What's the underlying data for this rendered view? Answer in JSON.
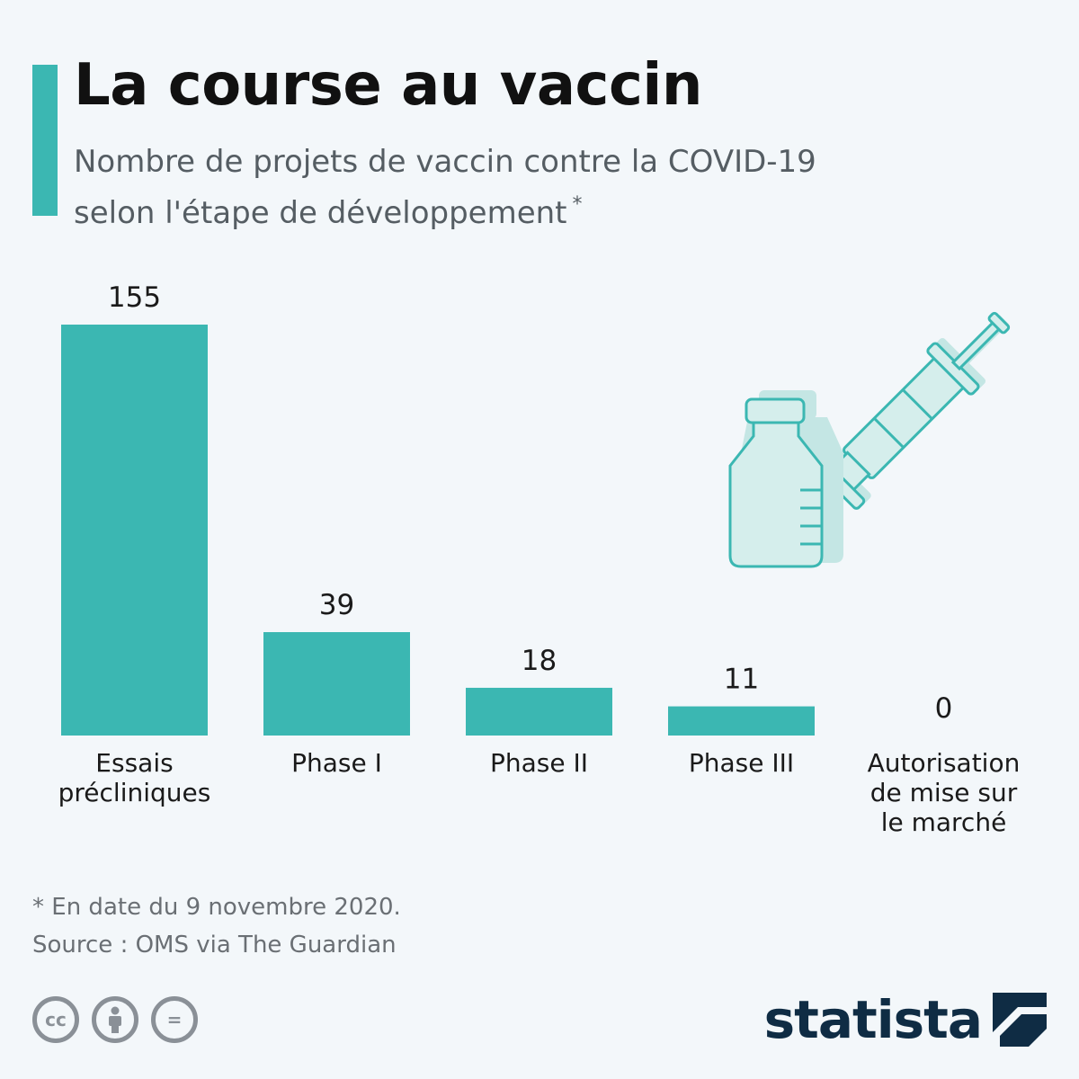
{
  "header": {
    "title": "La course au vaccin",
    "subtitle_line1": "Nombre de projets de vaccin contre la COVID-19",
    "subtitle_line2": "selon l'étape de développement",
    "subtitle_marker": "*"
  },
  "chart_data": {
    "type": "bar",
    "categories": [
      [
        "Essais",
        "précliniques"
      ],
      [
        "Phase I"
      ],
      [
        "Phase II"
      ],
      [
        "Phase III"
      ],
      [
        "Autorisation",
        "de mise sur",
        "le marché"
      ]
    ],
    "values": [
      155,
      39,
      18,
      11,
      0
    ],
    "ylim": [
      0,
      155
    ],
    "grid": false,
    "legend": "none",
    "bar_color": "#3bb7b2"
  },
  "footer": {
    "note": "* En date du 9 novembre 2020.",
    "source": "Source : OMS via The Guardian"
  },
  "license_icons": [
    "cc-icon",
    "attribution-icon",
    "no-derivatives-icon"
  ],
  "license_glyphs": {
    "cc": "cc",
    "by": "",
    "nd": "="
  },
  "brand": {
    "name": "statista",
    "primary_color": "#0f2c44",
    "accent_color": "#3bb7b2"
  },
  "icons": {
    "illustration": "vaccine-vial-and-syringe-icon"
  }
}
